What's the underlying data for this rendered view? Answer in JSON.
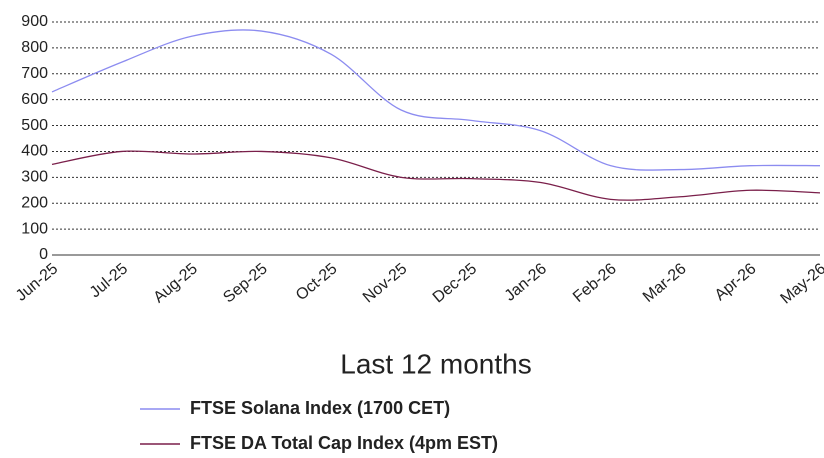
{
  "chart_data": {
    "type": "line",
    "title": "Last 12 months",
    "categories": [
      "Jun-25",
      "Jul-25",
      "Aug-25",
      "Sep-25",
      "Oct-25",
      "Nov-25",
      "Dec-25",
      "Jan-26",
      "Feb-26",
      "Mar-26",
      "Apr-26",
      "May-26"
    ],
    "series": [
      {
        "name": "FTSE Solana Index (1700 CET)",
        "color": "#8c8cf0",
        "values": [
          630,
          745,
          845,
          865,
          775,
          560,
          520,
          480,
          345,
          330,
          345,
          345
        ]
      },
      {
        "name": "FTSE DA Total Cap Index (4pm EST)",
        "color": "#7a1f4a",
        "values": [
          350,
          400,
          390,
          400,
          375,
          300,
          295,
          280,
          215,
          225,
          250,
          240
        ]
      }
    ],
    "ylim": [
      0,
      900
    ],
    "yticks": [
      0,
      100,
      200,
      300,
      400,
      500,
      600,
      700,
      800,
      900
    ],
    "grid": true,
    "smooth": true
  }
}
